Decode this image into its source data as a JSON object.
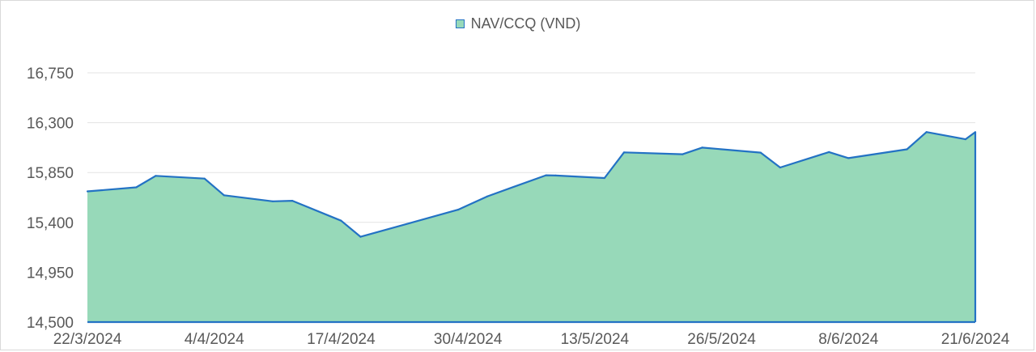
{
  "chart_data": {
    "type": "area",
    "series": [
      {
        "name": "NAV/CCQ (VND)",
        "color": "#2372c4",
        "fill": "#97d9b9",
        "points": [
          {
            "x": "2024-03-22",
            "y": 15680
          },
          {
            "x": "2024-03-27",
            "y": 15716
          },
          {
            "x": "2024-03-29",
            "y": 15820
          },
          {
            "x": "2024-04-03",
            "y": 15795
          },
          {
            "x": "2024-04-05",
            "y": 15645
          },
          {
            "x": "2024-04-10",
            "y": 15590
          },
          {
            "x": "2024-04-12",
            "y": 15595
          },
          {
            "x": "2024-04-17",
            "y": 15415
          },
          {
            "x": "2024-04-19",
            "y": 15270
          },
          {
            "x": "2024-04-29",
            "y": 15515
          },
          {
            "x": "2024-05-02",
            "y": 15635
          },
          {
            "x": "2024-05-08",
            "y": 15825
          },
          {
            "x": "2024-05-09",
            "y": 15823
          },
          {
            "x": "2024-05-14",
            "y": 15800
          },
          {
            "x": "2024-05-16",
            "y": 16032
          },
          {
            "x": "2024-05-22",
            "y": 16015
          },
          {
            "x": "2024-05-24",
            "y": 16075
          },
          {
            "x": "2024-05-30",
            "y": 16030
          },
          {
            "x": "2024-06-01",
            "y": 15895
          },
          {
            "x": "2024-06-06",
            "y": 16035
          },
          {
            "x": "2024-06-08",
            "y": 15980
          },
          {
            "x": "2024-06-14",
            "y": 16060
          },
          {
            "x": "2024-06-16",
            "y": 16215
          },
          {
            "x": "2024-06-20",
            "y": 16150
          },
          {
            "x": "2024-06-21",
            "y": 16215
          }
        ]
      }
    ],
    "x_range": [
      "2024-03-22",
      "2024-06-21"
    ],
    "x_ticks": [
      {
        "date": "2024-03-22",
        "label": "22/3/2024"
      },
      {
        "date": "2024-04-04",
        "label": "4/4/2024"
      },
      {
        "date": "2024-04-17",
        "label": "17/4/2024"
      },
      {
        "date": "2024-04-30",
        "label": "30/4/2024"
      },
      {
        "date": "2024-05-13",
        "label": "13/5/2024"
      },
      {
        "date": "2024-05-26",
        "label": "26/5/2024"
      },
      {
        "date": "2024-06-08",
        "label": "8/6/2024"
      },
      {
        "date": "2024-06-21",
        "label": "21/6/2024"
      }
    ],
    "y_ticks": [
      14500,
      14950,
      15400,
      15850,
      16300,
      16750
    ],
    "y_tick_labels": [
      "14,500",
      "14,950",
      "15,400",
      "15,850",
      "16,300",
      "16,750"
    ],
    "ylim": [
      14500,
      16750
    ],
    "grid": true,
    "legend_position": "top-center",
    "title": "",
    "xlabel": "",
    "ylabel": ""
  }
}
